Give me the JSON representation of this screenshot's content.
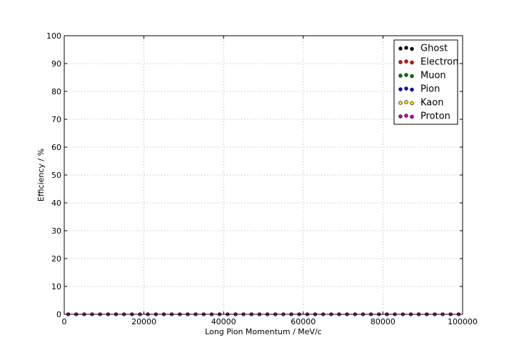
{
  "chart_data": {
    "type": "scatter",
    "title": "",
    "xlabel": "Long Pion Momentum / MeV/c",
    "ylabel": "Efficiency / %",
    "xlim": [
      0,
      100000
    ],
    "ylim": [
      0,
      100
    ],
    "xticks": [
      0,
      20000,
      40000,
      60000,
      80000,
      100000
    ],
    "yticks": [
      0,
      10,
      20,
      30,
      40,
      50,
      60,
      70,
      80,
      90,
      100
    ],
    "grid": true,
    "legend_position": "top-right",
    "marker": "circle",
    "x": [
      1000,
      3000,
      5000,
      7000,
      9000,
      11000,
      13000,
      15000,
      17000,
      19000,
      21000,
      23000,
      25000,
      27000,
      29000,
      31000,
      33000,
      35000,
      37000,
      39000,
      41000,
      43000,
      45000,
      47000,
      49000,
      51000,
      53000,
      55000,
      57000,
      59000,
      61000,
      63000,
      65000,
      67000,
      69000,
      71000,
      73000,
      75000,
      77000,
      79000,
      81000,
      83000,
      85000,
      87000,
      89000,
      91000,
      93000,
      95000,
      97000,
      99000
    ],
    "series": [
      {
        "name": "Ghost",
        "color": "#000000",
        "value": 0
      },
      {
        "name": "Electron",
        "color": "#ff0000",
        "value": 0
      },
      {
        "name": "Muon",
        "color": "#008000",
        "value": 0
      },
      {
        "name": "Pion",
        "color": "#0000ff",
        "value": 0
      },
      {
        "name": "Kaon",
        "color": "#ffd700",
        "value": 0
      },
      {
        "name": "Proton",
        "color": "#bf00bf",
        "value": 0
      }
    ]
  }
}
